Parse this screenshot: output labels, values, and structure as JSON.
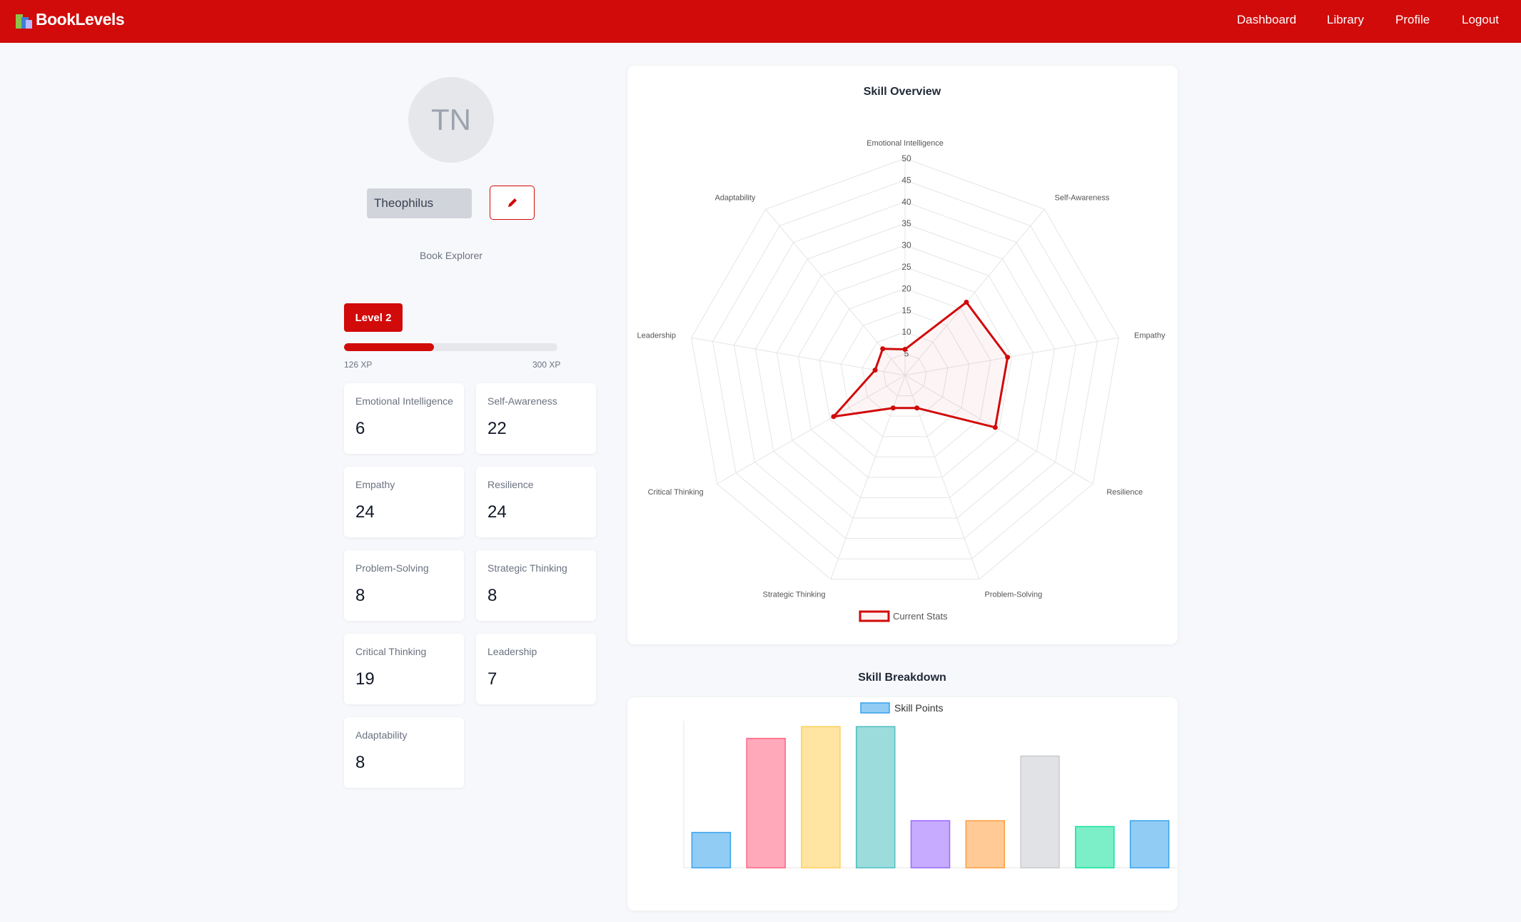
{
  "nav": {
    "brand": "BookLevels",
    "links": [
      "Dashboard",
      "Library",
      "Profile",
      "Logout"
    ]
  },
  "profile": {
    "initials": "TN",
    "name": "Theophilus",
    "role": "Book Explorer",
    "level": "Level 2",
    "xp": {
      "value": 126,
      "label": "126 XP"
    },
    "xp_max": {
      "value": 300,
      "label": "300 XP"
    }
  },
  "chart_data": [
    {
      "type": "radar",
      "title": "Skill Overview",
      "categories": [
        "Emotional Intelligence",
        "Self-Awareness",
        "Empathy",
        "Resilience",
        "Problem-Solving",
        "Strategic Thinking",
        "Critical Thinking",
        "Leadership",
        "Adaptability"
      ],
      "series": [
        {
          "name": "Current Stats",
          "color": "#d10a0a",
          "values": [
            6,
            22,
            24,
            24,
            8,
            8,
            19,
            7,
            8
          ]
        }
      ],
      "rlim": [
        0,
        50
      ],
      "rticks": [
        5,
        10,
        15,
        20,
        25,
        30,
        35,
        40,
        45,
        50
      ],
      "grid": true
    },
    {
      "type": "bar",
      "title": "Skill Breakdown",
      "series": [
        {
          "name": "Skill Points",
          "color": "#36a2eb",
          "values": [
            6,
            22,
            24,
            24,
            8,
            8,
            19,
            7,
            8
          ],
          "colors": [
            "#36a2eb",
            "#ff6384",
            "#ffce56",
            "#4bc0c0",
            "#9966ff",
            "#ff9f40",
            "#c9cbcf",
            "#10e29a",
            "#36a2eb"
          ]
        }
      ],
      "ylim": [
        0,
        25
      ]
    }
  ]
}
